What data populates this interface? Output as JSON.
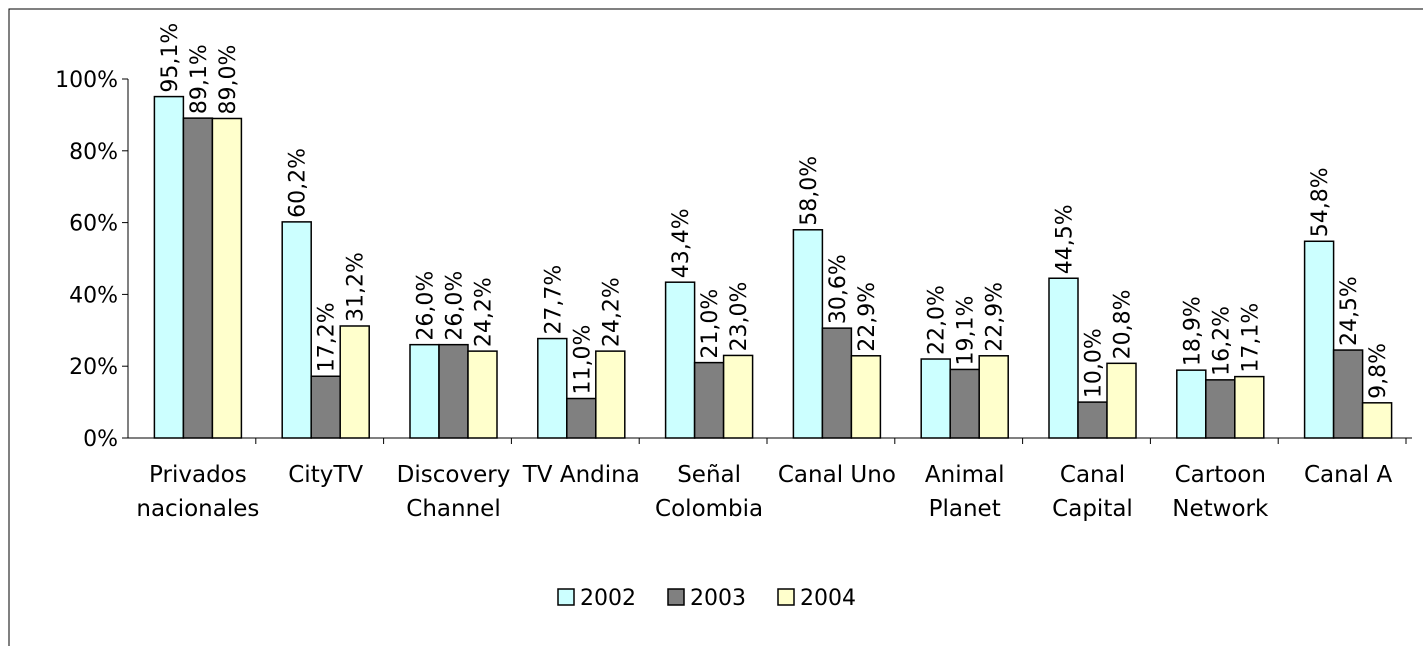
{
  "chart_data": {
    "type": "bar",
    "categories": [
      "Privados\nnacionales",
      "CityTV",
      "Discovery\nChannel",
      "TV Andina",
      "Señal\nColombia",
      "Canal Uno",
      "Animal\nPlanet",
      "Canal\nCapital",
      "Cartoon\nNetwork",
      "Canal A"
    ],
    "series": [
      {
        "name": "2002",
        "color": "#ccffff",
        "values": [
          95.1,
          60.2,
          26.0,
          27.7,
          43.4,
          58.0,
          22.0,
          44.5,
          18.9,
          54.8
        ],
        "value_labels": [
          "95,1%",
          "60,2%",
          "26,0%",
          "27,7%",
          "43,4%",
          "58,0%",
          "22,0%",
          "44,5%",
          "18,9%",
          "54,8%"
        ]
      },
      {
        "name": "2003",
        "color": "#808080",
        "values": [
          89.1,
          17.2,
          26.0,
          11.0,
          21.0,
          30.6,
          19.1,
          10.0,
          16.2,
          24.5
        ],
        "value_labels": [
          "89,1%",
          "17,2%",
          "26,0%",
          "11,0%",
          "21,0%",
          "30,6%",
          "19,1%",
          "10,0%",
          "16,2%",
          "24,5%"
        ]
      },
      {
        "name": "2004",
        "color": "#ffffcc",
        "values": [
          89.0,
          31.2,
          24.2,
          24.2,
          23.0,
          22.9,
          22.9,
          20.8,
          17.1,
          9.8
        ],
        "value_labels": [
          "89,0%",
          "31,2%",
          "24,2%",
          "24,2%",
          "23,0%",
          "22,9%",
          "22,9%",
          "20,8%",
          "17,1%",
          "9,8%"
        ]
      }
    ],
    "ylim": [
      0,
      100
    ],
    "yticks": [
      {
        "value": 0,
        "label": "0%"
      },
      {
        "value": 20,
        "label": "20%"
      },
      {
        "value": 40,
        "label": "40%"
      },
      {
        "value": 60,
        "label": "60%"
      },
      {
        "value": 80,
        "label": "80%"
      },
      {
        "value": 100,
        "label": "100%"
      }
    ],
    "legend": "bottom"
  }
}
